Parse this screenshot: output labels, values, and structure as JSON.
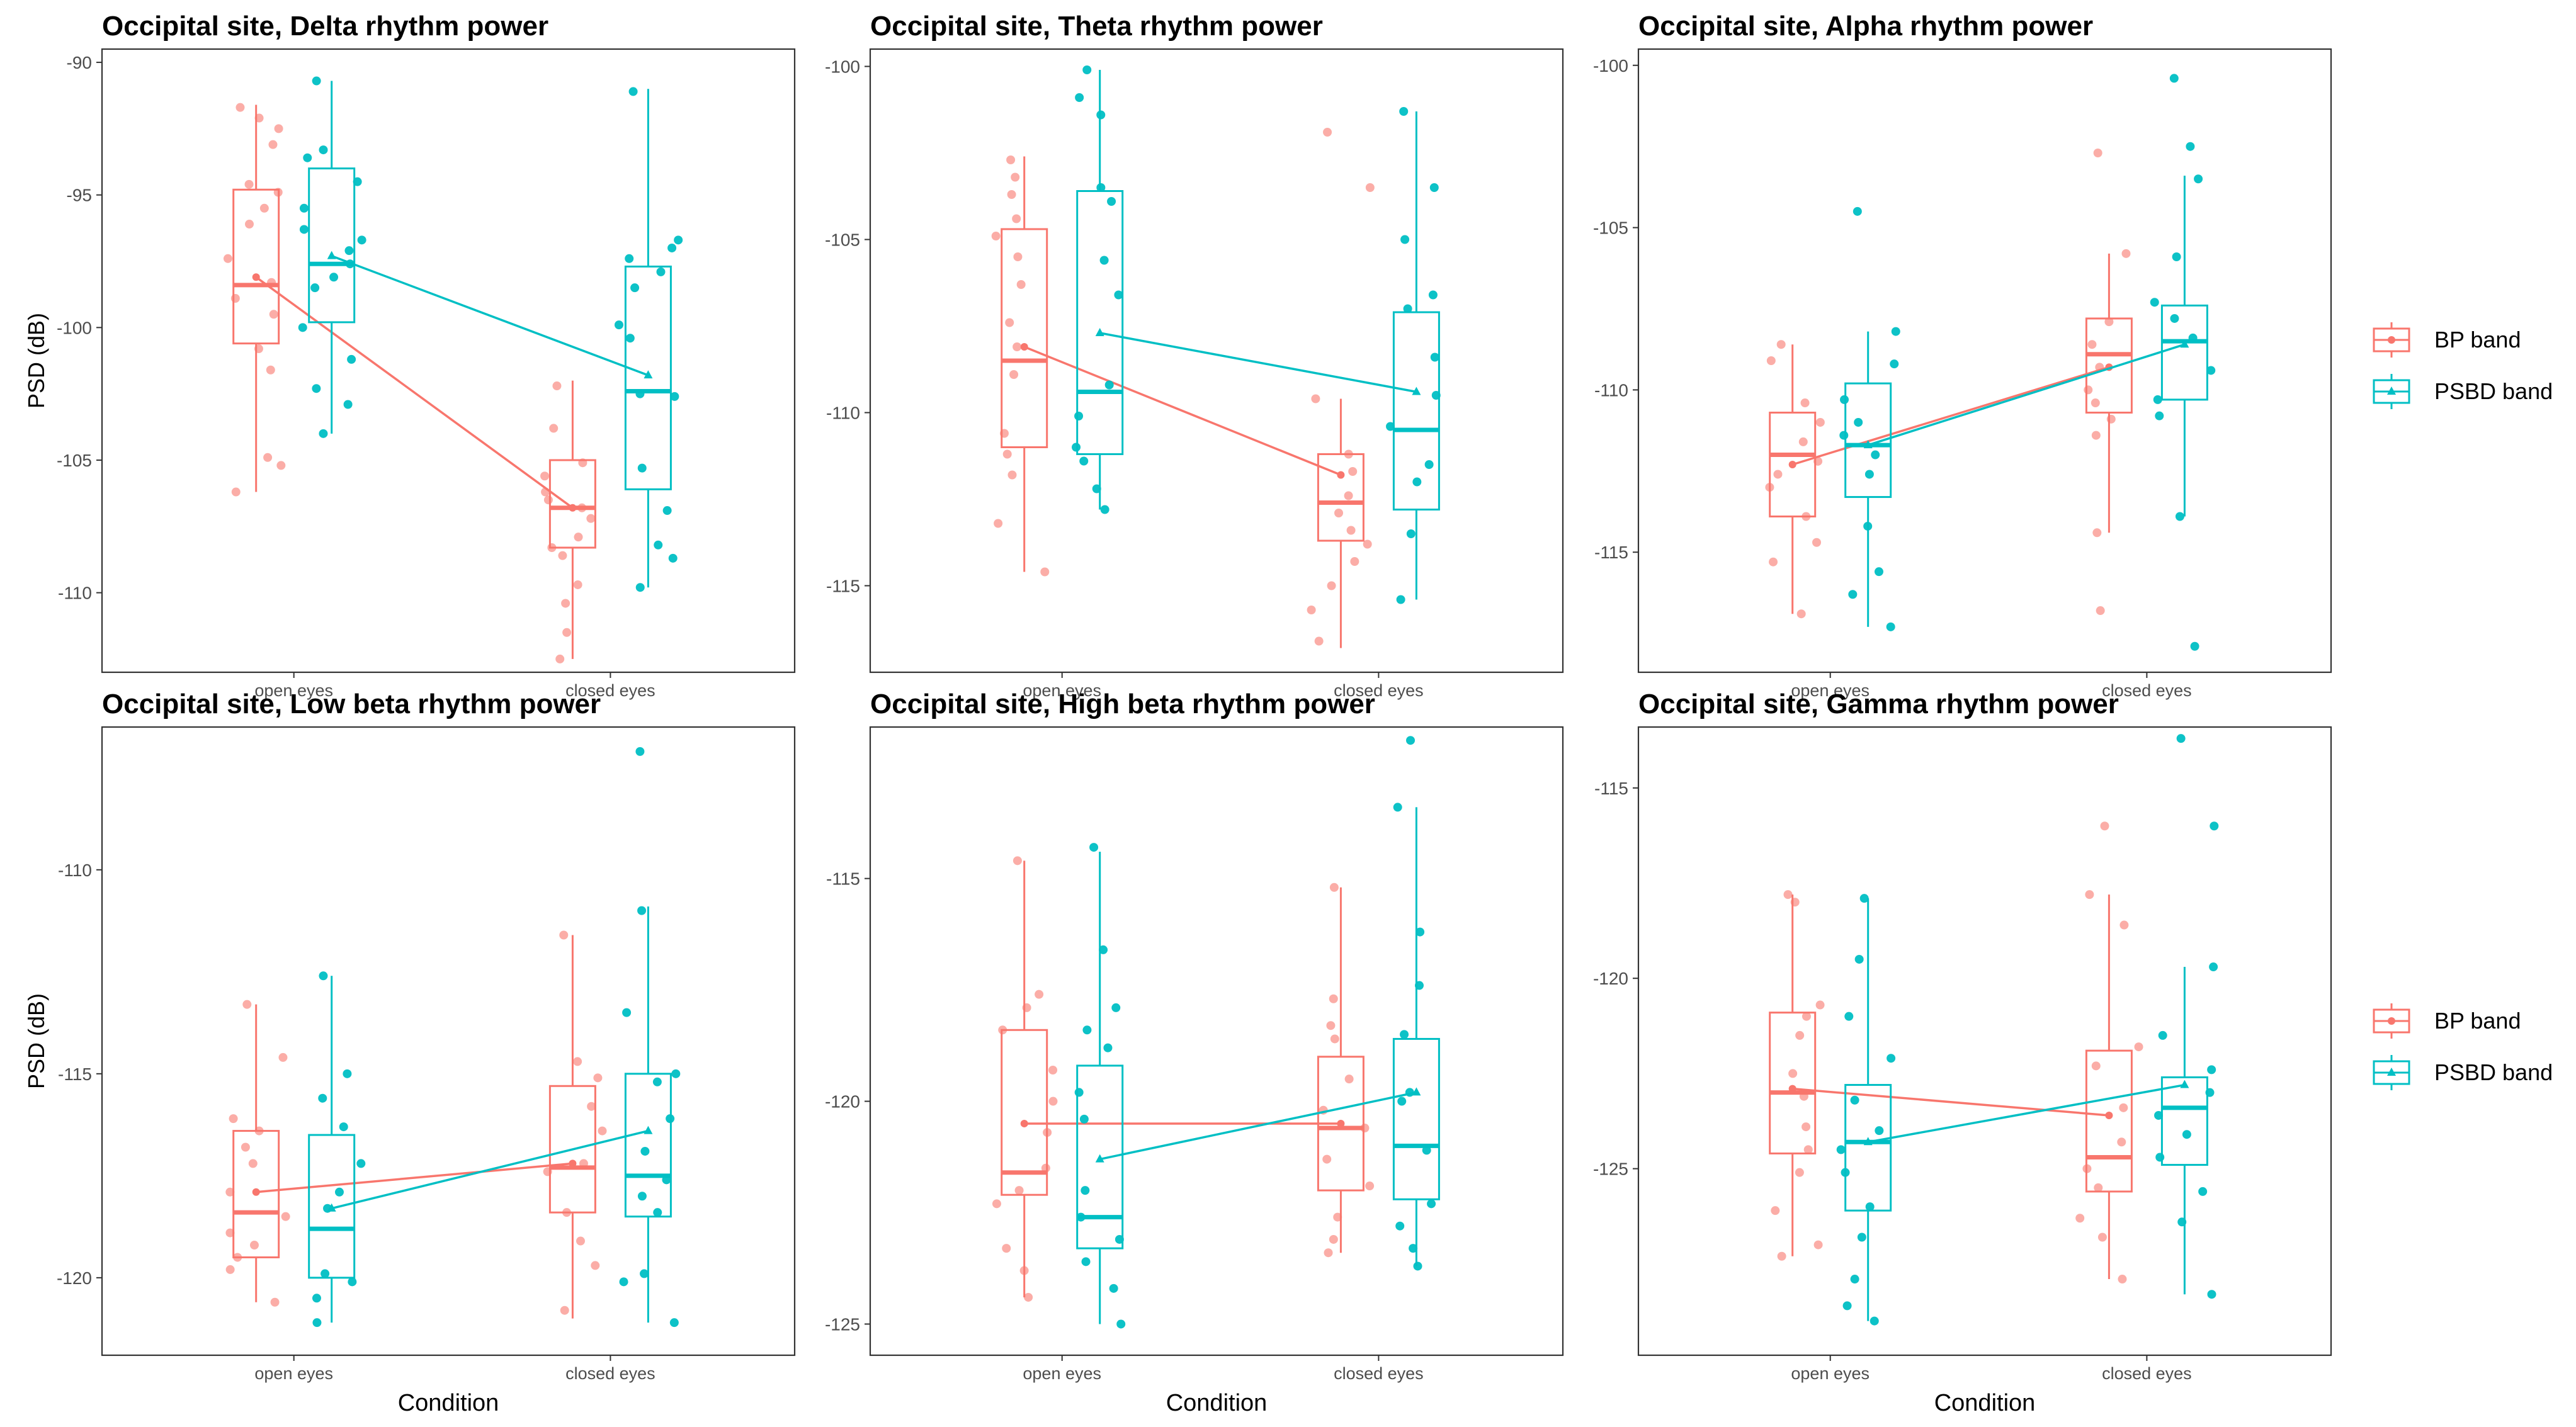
{
  "colors": {
    "bp": "#F8766D",
    "psbd": "#00BFC4",
    "axis": "#333333",
    "panel_border": "#333333"
  },
  "legend": {
    "entries": [
      {
        "key": "bp",
        "label": "BP band"
      },
      {
        "key": "psbd",
        "label": "PSBD band"
      }
    ]
  },
  "chart_data": [
    {
      "type": "boxplot-jitter",
      "title": "Occipital site, Delta rhythm power",
      "ylabel": "PSD (dB)",
      "xlabel": "",
      "categories": [
        "open eyes",
        "closed eyes"
      ],
      "ylim": [
        -113,
        -89.5
      ],
      "yticks": [
        -90,
        -95,
        -100,
        -105,
        -110
      ],
      "series": [
        {
          "name": "BP band",
          "boxes": [
            {
              "min": -106.2,
              "q1": -100.6,
              "median": -98.4,
              "q3": -94.8,
              "max": -91.6
            },
            {
              "min": -112.5,
              "q1": -108.3,
              "median": -106.8,
              "q3": -105.0,
              "max": -102.0
            }
          ],
          "means": [
            -98.1,
            -106.8
          ],
          "points": [
            [
              -91.7,
              -92.1,
              -92.5,
              -93.1,
              -94.6,
              -94.9,
              -95.5,
              -96.1,
              -97.4,
              -98.3,
              -98.9,
              -99.5,
              -100.8,
              -101.6,
              -104.9,
              -105.2,
              -106.2
            ],
            [
              -102.2,
              -103.8,
              -105.1,
              -105.6,
              -106.2,
              -106.5,
              -106.8,
              -107.2,
              -107.9,
              -108.3,
              -108.6,
              -109.7,
              -110.4,
              -111.5,
              -112.5
            ]
          ]
        },
        {
          "name": "PSBD band",
          "boxes": [
            {
              "min": -104.0,
              "q1": -99.8,
              "median": -97.6,
              "q3": -94.0,
              "max": -90.7
            },
            {
              "min": -109.8,
              "q1": -106.1,
              "median": -102.4,
              "q3": -97.7,
              "max": -91.0
            }
          ],
          "means": [
            -97.3,
            -101.8
          ],
          "points": [
            [
              -90.7,
              -93.3,
              -93.6,
              -94.5,
              -95.5,
              -96.3,
              -96.7,
              -97.1,
              -97.6,
              -98.1,
              -98.5,
              -100.0,
              -101.2,
              -102.3,
              -102.9,
              -104.0
            ],
            [
              -91.1,
              -96.7,
              -97.0,
              -97.4,
              -97.9,
              -98.5,
              -99.9,
              -100.4,
              -102.5,
              -102.6,
              -105.3,
              -106.9,
              -108.2,
              -108.7,
              -109.8
            ]
          ]
        }
      ]
    },
    {
      "type": "boxplot-jitter",
      "title": "Occipital site, Theta rhythm power",
      "ylabel": "",
      "xlabel": "",
      "categories": [
        "open eyes",
        "closed eyes"
      ],
      "ylim": [
        -117.5,
        -99.5
      ],
      "yticks": [
        -100,
        -105,
        -110,
        -115
      ],
      "series": [
        {
          "name": "BP band",
          "boxes": [
            {
              "min": -114.6,
              "q1": -111.0,
              "median": -108.5,
              "q3": -104.7,
              "max": -102.6
            },
            {
              "min": -116.8,
              "q1": -113.7,
              "median": -112.6,
              "q3": -111.2,
              "max": -109.6
            }
          ],
          "means": [
            -108.1,
            -111.8
          ],
          "points": [
            [
              -102.7,
              -103.2,
              -103.7,
              -104.4,
              -104.9,
              -105.5,
              -106.3,
              -107.4,
              -108.1,
              -108.9,
              -110.6,
              -111.2,
              -111.8,
              -113.2,
              -114.6
            ],
            [
              -101.9,
              -103.5,
              -109.6,
              -111.2,
              -111.7,
              -112.4,
              -112.9,
              -113.4,
              -113.8,
              -114.3,
              -115.0,
              -115.7,
              -116.6
            ]
          ]
        },
        {
          "name": "PSBD band",
          "boxes": [
            {
              "min": -112.8,
              "q1": -111.2,
              "median": -109.4,
              "q3": -103.6,
              "max": -100.1
            },
            {
              "min": -115.4,
              "q1": -112.8,
              "median": -110.5,
              "q3": -107.1,
              "max": -101.3
            }
          ],
          "means": [
            -107.7,
            -109.4
          ],
          "points": [
            [
              -100.1,
              -100.9,
              -101.4,
              -103.5,
              -103.9,
              -105.6,
              -106.6,
              -109.2,
              -110.1,
              -111.0,
              -111.4,
              -112.2,
              -112.8
            ],
            [
              -101.3,
              -103.5,
              -105.0,
              -106.6,
              -107.0,
              -108.4,
              -109.5,
              -110.4,
              -111.5,
              -112.0,
              -113.5,
              -115.4
            ]
          ]
        }
      ]
    },
    {
      "type": "boxplot-jitter",
      "title": "Occipital site, Alpha rhythm power",
      "ylabel": "",
      "xlabel": "",
      "categories": [
        "open eyes",
        "closed eyes"
      ],
      "ylim": [
        -118.7,
        -99.5
      ],
      "yticks": [
        -100,
        -105,
        -110,
        -115
      ],
      "series": [
        {
          "name": "BP band",
          "boxes": [
            {
              "min": -116.9,
              "q1": -113.9,
              "median": -112.0,
              "q3": -110.7,
              "max": -108.6
            },
            {
              "min": -114.4,
              "q1": -110.7,
              "median": -108.9,
              "q3": -107.8,
              "max": -105.8
            }
          ],
          "means": [
            -112.3,
            -109.3
          ],
          "points": [
            [
              -108.6,
              -109.1,
              -110.4,
              -111.0,
              -111.6,
              -112.2,
              -112.6,
              -113.0,
              -113.9,
              -114.7,
              -115.3,
              -116.9
            ],
            [
              -102.7,
              -105.8,
              -107.9,
              -108.6,
              -109.3,
              -110.0,
              -110.4,
              -110.9,
              -111.4,
              -114.4,
              -116.8
            ]
          ]
        },
        {
          "name": "PSBD band",
          "boxes": [
            {
              "min": -117.3,
              "q1": -113.3,
              "median": -111.7,
              "q3": -109.8,
              "max": -108.2
            },
            {
              "min": -113.9,
              "q1": -110.3,
              "median": -108.5,
              "q3": -107.4,
              "max": -103.4
            }
          ],
          "means": [
            -111.7,
            -108.6
          ],
          "points": [
            [
              -104.5,
              -108.2,
              -109.2,
              -110.3,
              -111.0,
              -111.4,
              -112.0,
              -112.6,
              -114.2,
              -115.6,
              -116.3,
              -117.3
            ],
            [
              -100.4,
              -102.5,
              -103.5,
              -105.9,
              -107.3,
              -107.8,
              -108.4,
              -109.4,
              -110.3,
              -110.8,
              -113.9,
              -117.9
            ]
          ]
        }
      ]
    },
    {
      "type": "boxplot-jitter",
      "title": "Occipital site, Low beta rhythm power",
      "ylabel": "PSD (dB)",
      "xlabel": "Condition",
      "categories": [
        "open eyes",
        "closed eyes"
      ],
      "ylim": [
        -121.9,
        -106.5
      ],
      "yticks": [
        -110,
        -115,
        -120
      ],
      "series": [
        {
          "name": "BP band",
          "boxes": [
            {
              "min": -120.6,
              "q1": -119.5,
              "median": -118.4,
              "q3": -116.4,
              "max": -113.3
            },
            {
              "min": -121.0,
              "q1": -118.4,
              "median": -117.3,
              "q3": -115.3,
              "max": -111.6
            }
          ],
          "means": [
            -117.9,
            -117.2
          ],
          "points": [
            [
              -113.3,
              -114.6,
              -116.1,
              -116.4,
              -116.8,
              -117.2,
              -117.9,
              -118.5,
              -118.9,
              -119.2,
              -119.5,
              -119.8,
              -120.6
            ],
            [
              -111.6,
              -114.7,
              -115.1,
              -115.8,
              -116.4,
              -117.2,
              -117.4,
              -118.4,
              -119.1,
              -119.7,
              -120.8
            ]
          ]
        },
        {
          "name": "PSBD band",
          "boxes": [
            {
              "min": -121.1,
              "q1": -120.0,
              "median": -118.8,
              "q3": -116.5,
              "max": -112.6
            },
            {
              "min": -121.1,
              "q1": -118.5,
              "median": -117.5,
              "q3": -115.0,
              "max": -110.9
            }
          ],
          "means": [
            -118.3,
            -116.4
          ],
          "points": [
            [
              -112.6,
              -115.0,
              -115.6,
              -116.3,
              -117.2,
              -117.9,
              -118.3,
              -119.9,
              -120.1,
              -120.5,
              -121.1
            ],
            [
              -107.1,
              -111.0,
              -113.5,
              -115.0,
              -115.2,
              -116.1,
              -116.9,
              -117.6,
              -118.0,
              -118.4,
              -119.9,
              -120.1,
              -121.1
            ]
          ]
        }
      ]
    },
    {
      "type": "boxplot-jitter",
      "title": "Occipital site, High beta rhythm power",
      "ylabel": "",
      "xlabel": "Condition",
      "categories": [
        "open eyes",
        "closed eyes"
      ],
      "ylim": [
        -125.7,
        -111.6
      ],
      "yticks": [
        -115,
        -120,
        -125
      ],
      "series": [
        {
          "name": "BP band",
          "boxes": [
            {
              "min": -124.4,
              "q1": -122.1,
              "median": -121.6,
              "q3": -118.4,
              "max": -114.6
            },
            {
              "min": -123.4,
              "q1": -122.0,
              "median": -120.6,
              "q3": -119.0,
              "max": -115.2
            }
          ],
          "means": [
            -120.5,
            -120.5
          ],
          "points": [
            [
              -114.6,
              -117.6,
              -117.9,
              -118.4,
              -119.3,
              -120.0,
              -120.7,
              -121.5,
              -122.0,
              -122.3,
              -123.3,
              -123.8,
              -124.4
            ],
            [
              -115.2,
              -117.7,
              -118.3,
              -118.6,
              -119.5,
              -120.2,
              -120.6,
              -121.3,
              -121.9,
              -122.6,
              -123.1,
              -123.4
            ]
          ]
        },
        {
          "name": "PSBD band",
          "boxes": [
            {
              "min": -125.0,
              "q1": -123.3,
              "median": -122.6,
              "q3": -119.2,
              "max": -114.4
            },
            {
              "min": -123.7,
              "q1": -122.2,
              "median": -121.0,
              "q3": -118.6,
              "max": -113.4
            }
          ],
          "means": [
            -121.3,
            -119.8
          ],
          "points": [
            [
              -114.3,
              -116.6,
              -117.9,
              -118.4,
              -118.8,
              -119.8,
              -120.4,
              -122.0,
              -122.6,
              -123.1,
              -123.6,
              -124.2,
              -125.0
            ],
            [
              -111.9,
              -113.4,
              -116.2,
              -117.4,
              -118.5,
              -119.8,
              -120.0,
              -121.1,
              -122.3,
              -122.8,
              -123.3,
              -123.7
            ]
          ]
        }
      ]
    },
    {
      "type": "boxplot-jitter",
      "title": "Occipital site, Gamma rhythm power",
      "ylabel": "",
      "xlabel": "Condition",
      "categories": [
        "open eyes",
        "closed eyes"
      ],
      "ylim": [
        -129.9,
        -113.4
      ],
      "yticks": [
        -115,
        -120,
        -125
      ],
      "series": [
        {
          "name": "BP band",
          "boxes": [
            {
              "min": -127.3,
              "q1": -124.6,
              "median": -123.0,
              "q3": -120.9,
              "max": -117.8
            },
            {
              "min": -127.9,
              "q1": -125.6,
              "median": -124.7,
              "q3": -121.9,
              "max": -117.8
            }
          ],
          "means": [
            -122.9,
            -123.6
          ],
          "points": [
            [
              -117.8,
              -118.0,
              -120.7,
              -121.0,
              -121.5,
              -122.5,
              -123.1,
              -123.9,
              -124.5,
              -125.1,
              -126.1,
              -127.0,
              -127.3
            ],
            [
              -116.0,
              -117.8,
              -118.6,
              -121.8,
              -122.3,
              -123.4,
              -124.3,
              -125.0,
              -125.5,
              -126.3,
              -126.8,
              -127.9
            ]
          ]
        },
        {
          "name": "PSBD band",
          "boxes": [
            {
              "min": -129.0,
              "q1": -126.1,
              "median": -124.3,
              "q3": -122.8,
              "max": -117.9
            },
            {
              "min": -128.3,
              "q1": -124.9,
              "median": -123.4,
              "q3": -122.6,
              "max": -119.7
            }
          ],
          "means": [
            -124.3,
            -122.8
          ],
          "points": [
            [
              -117.9,
              -119.5,
              -121.0,
              -122.1,
              -123.2,
              -124.0,
              -124.5,
              -125.1,
              -126.0,
              -126.8,
              -127.9,
              -128.6,
              -129.0
            ],
            [
              -113.7,
              -116.0,
              -119.7,
              -121.5,
              -122.4,
              -123.0,
              -123.6,
              -124.1,
              -124.7,
              -125.6,
              -126.4,
              -128.3
            ]
          ]
        }
      ]
    }
  ]
}
